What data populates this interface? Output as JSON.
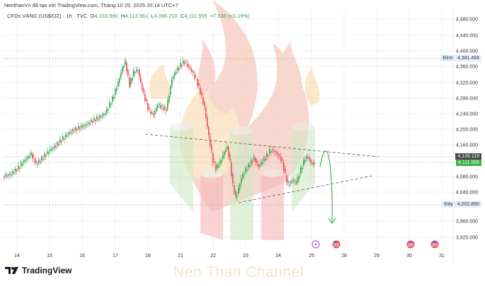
{
  "attribution": "NenthanVn đã tạo với TradingView.com, Tháng 10 25, 2025 20:14 UTC+7",
  "legend": {
    "symbol": "CFDs VÀNG (US$/OZ) · 1h · TVC",
    "open_label": "O",
    "open": "4,103.990",
    "high_label": "H",
    "high": "4,113.961",
    "low_label": "L",
    "low": "4,096.210",
    "close_label": "C",
    "close": "4,111.555",
    "change": "+7.935 (+0.19%)"
  },
  "price_axis": {
    "ticks": [
      "4,480.000",
      "4,440.000",
      "4,400.000",
      "4,360.000",
      "4,320.000",
      "4,280.000",
      "4,240.000",
      "4,200.000",
      "4,160.000",
      "4,080.000",
      "4,040.000",
      "3,960.000",
      "3,920.000"
    ],
    "top_level_label": "Đỉnh",
    "top_level_value": "4,381.484",
    "bottom_level_label": "Đáy",
    "bottom_level_value": "4,002.890",
    "marker_dark": "4,126.119",
    "last_price": "4,111.555"
  },
  "time_axis": {
    "ticks": [
      "14",
      "15",
      "16",
      "17",
      "18",
      "21",
      "22",
      "23",
      "24",
      "25",
      "28",
      "29",
      "30",
      "31"
    ]
  },
  "events": [
    {
      "type": "lightning-event",
      "date": "25"
    },
    {
      "type": "us-flag-event",
      "date": "28"
    },
    {
      "type": "us-flag-event",
      "date": "30"
    },
    {
      "type": "us-flag-event",
      "date": "31"
    }
  ],
  "branding": {
    "logo_text": "TradingView",
    "watermark": "Nen Than Channel"
  },
  "colors": {
    "up": "#26a64a",
    "down": "#ef4452",
    "last_price_bg": "#3cb04a",
    "marker_bg": "#4a4a4a",
    "level_bg": "#e3eefc",
    "event_lightning": "#a53fd6",
    "event_flag": "#e84c5b"
  }
}
